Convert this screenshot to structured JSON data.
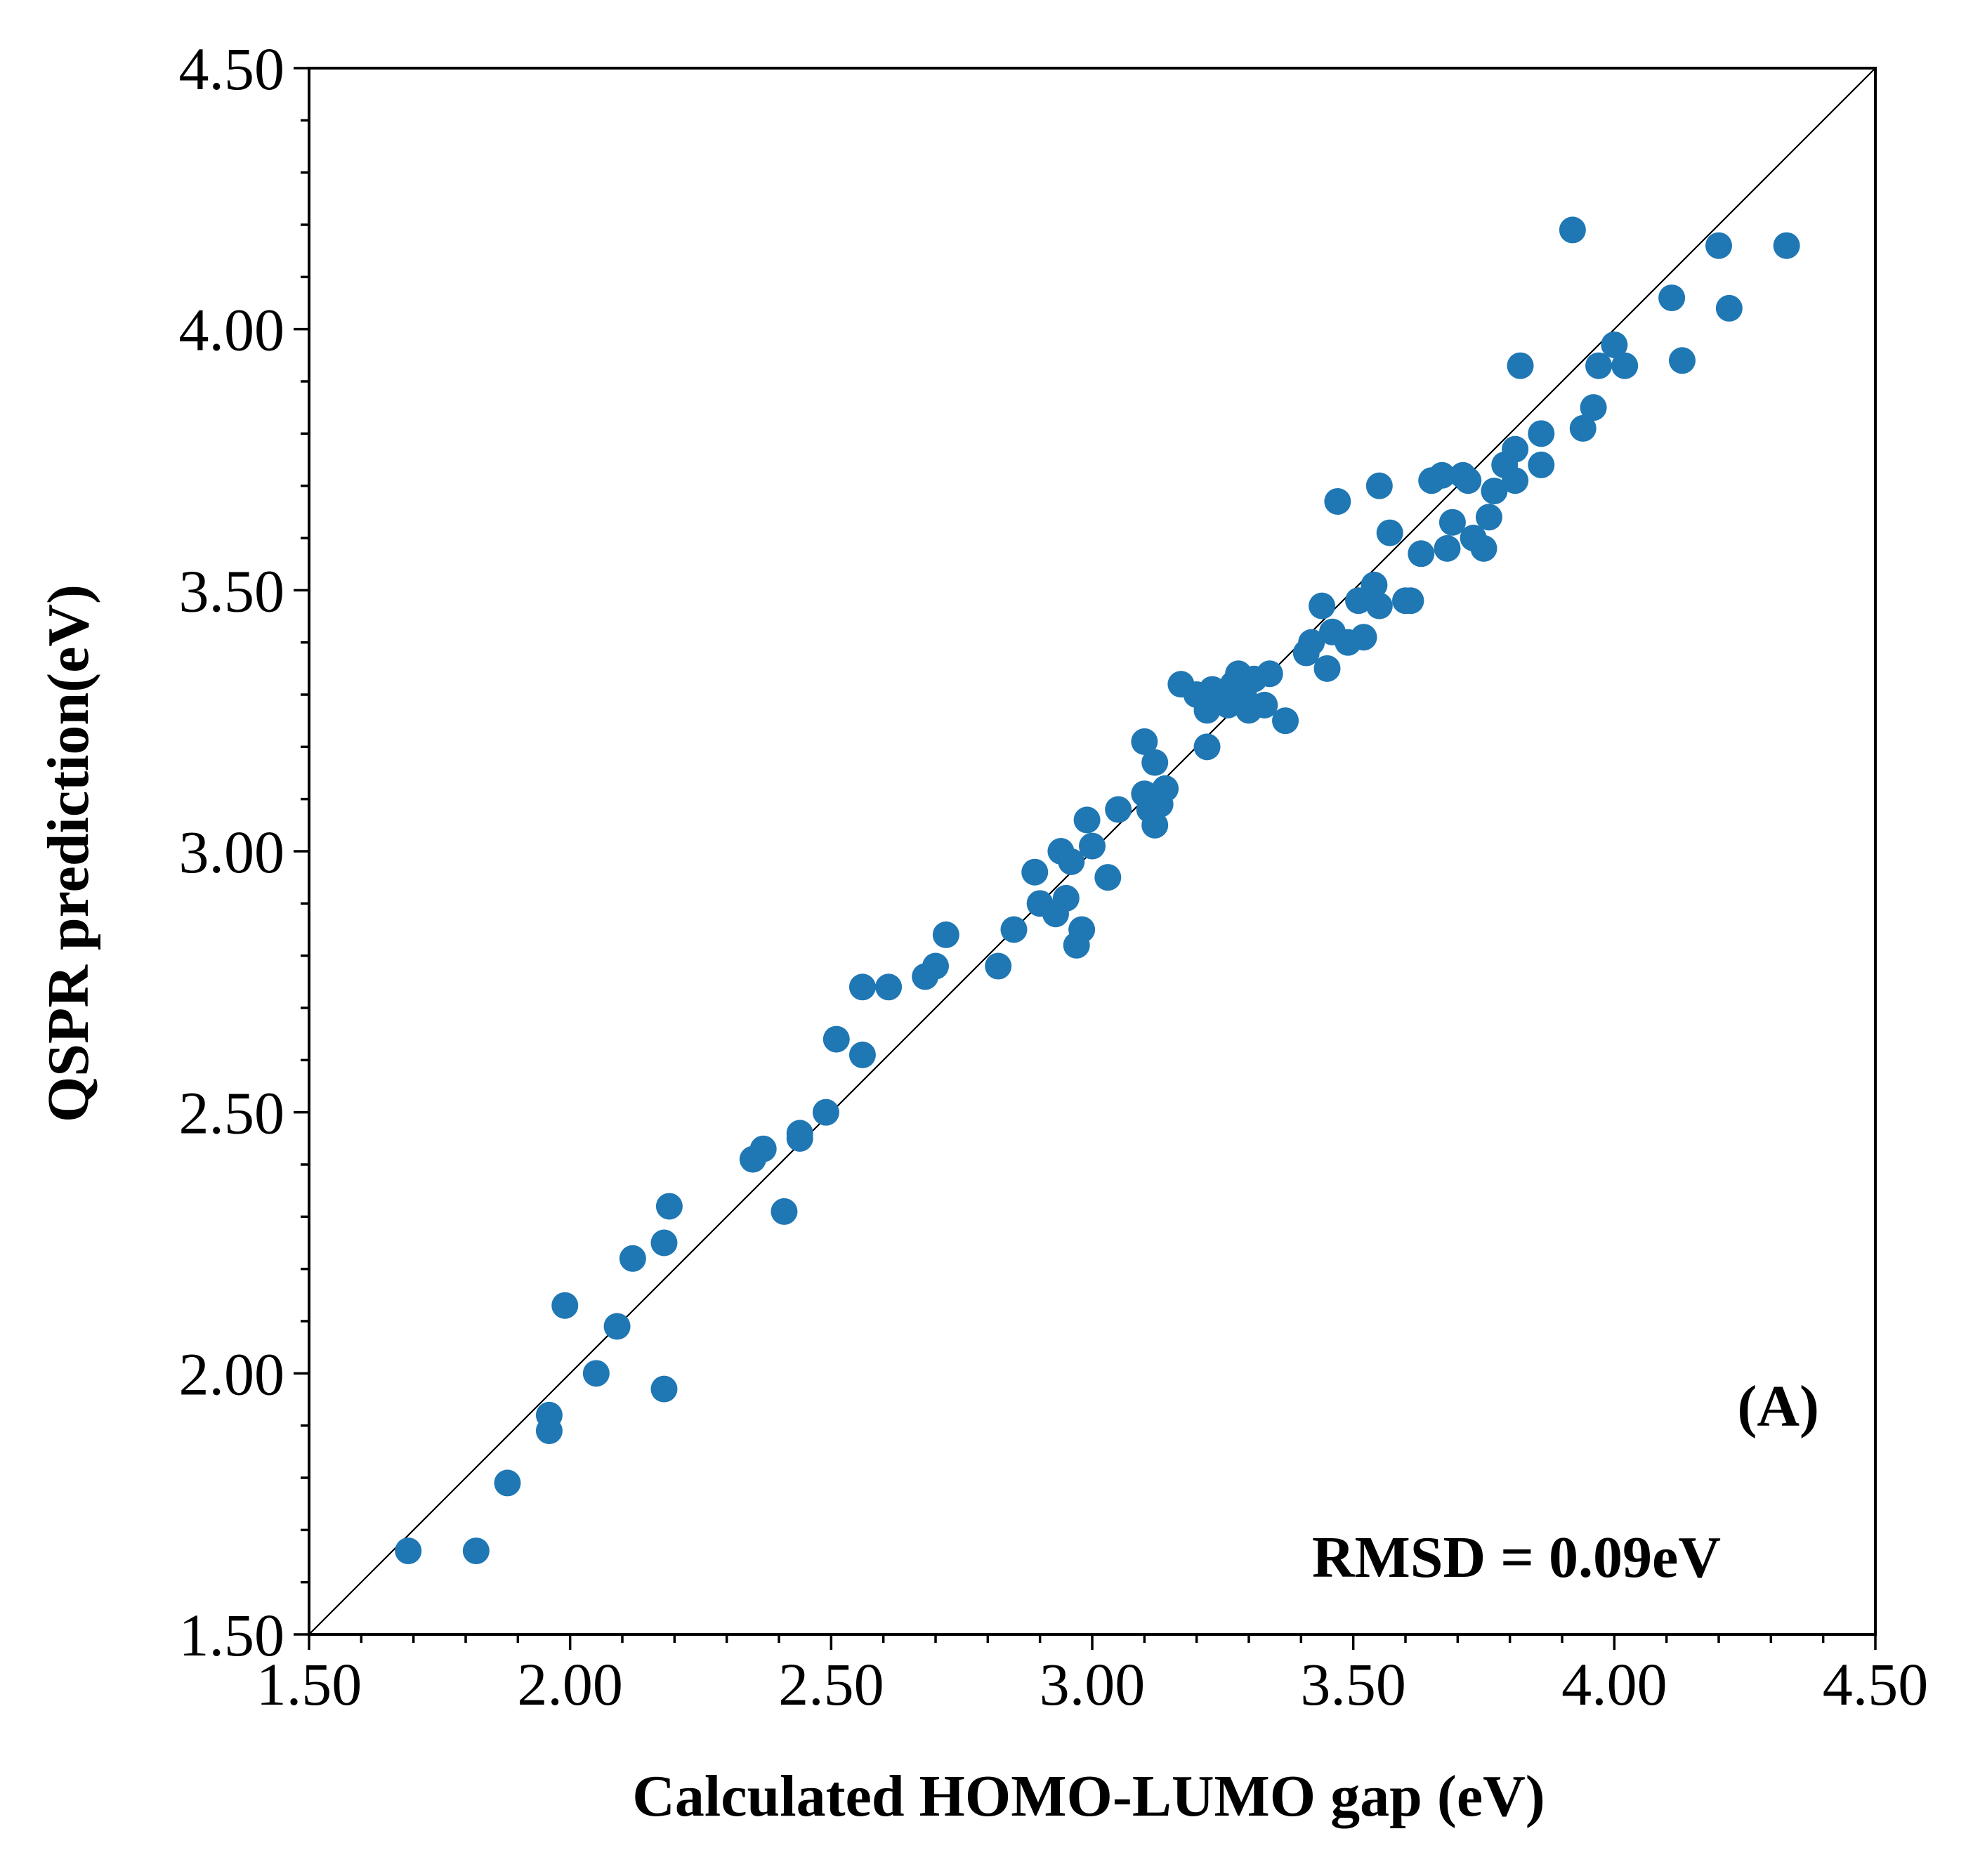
{
  "chart_data": {
    "type": "scatter",
    "xlabel": "Calculated HOMO-LUMO gap (eV)",
    "ylabel": "QSPR prediction(eV)",
    "xlim": [
      1.5,
      4.5
    ],
    "ylim": [
      1.5,
      4.5
    ],
    "xticks": [
      "1.50",
      "2.00",
      "2.50",
      "3.00",
      "3.50",
      "4.00",
      "4.50"
    ],
    "yticks": [
      "1.50",
      "2.00",
      "2.50",
      "3.00",
      "3.50",
      "4.00",
      "4.50"
    ],
    "grid": false,
    "reference_line": "y = x",
    "marker_color": "#1f77b4",
    "annotations": {
      "panel_label": "(A)",
      "rmsd": "RMSD = 0.09eV"
    },
    "points": [
      [
        1.69,
        1.66
      ],
      [
        1.82,
        1.66
      ],
      [
        1.88,
        1.79
      ],
      [
        1.96,
        1.89
      ],
      [
        1.96,
        1.92
      ],
      [
        1.99,
        2.13
      ],
      [
        2.05,
        2.0
      ],
      [
        2.09,
        2.09
      ],
      [
        2.12,
        2.22
      ],
      [
        2.18,
        1.97
      ],
      [
        2.18,
        2.25
      ],
      [
        2.19,
        2.32
      ],
      [
        2.35,
        2.41
      ],
      [
        2.37,
        2.43
      ],
      [
        2.41,
        2.31
      ],
      [
        2.44,
        2.45
      ],
      [
        2.44,
        2.46
      ],
      [
        2.49,
        2.5
      ],
      [
        2.51,
        2.64
      ],
      [
        2.56,
        2.61
      ],
      [
        2.56,
        2.74
      ],
      [
        2.61,
        2.74
      ],
      [
        2.68,
        2.76
      ],
      [
        2.7,
        2.78
      ],
      [
        2.72,
        2.84
      ],
      [
        2.82,
        2.78
      ],
      [
        2.85,
        2.85
      ],
      [
        2.89,
        2.96
      ],
      [
        2.9,
        2.9
      ],
      [
        2.93,
        2.88
      ],
      [
        2.94,
        3.0
      ],
      [
        2.95,
        2.91
      ],
      [
        2.96,
        2.98
      ],
      [
        2.97,
        2.82
      ],
      [
        2.98,
        2.85
      ],
      [
        2.99,
        3.06
      ],
      [
        3.0,
        3.01
      ],
      [
        3.03,
        2.95
      ],
      [
        3.05,
        3.08
      ],
      [
        3.1,
        3.21
      ],
      [
        3.1,
        3.11
      ],
      [
        3.11,
        3.08
      ],
      [
        3.12,
        3.05
      ],
      [
        3.12,
        3.17
      ],
      [
        3.13,
        3.09
      ],
      [
        3.14,
        3.12
      ],
      [
        3.17,
        3.32
      ],
      [
        3.2,
        3.3
      ],
      [
        3.22,
        3.27
      ],
      [
        3.22,
        3.2
      ],
      [
        3.23,
        3.31
      ],
      [
        3.25,
        3.3
      ],
      [
        3.26,
        3.28
      ],
      [
        3.27,
        3.32
      ],
      [
        3.28,
        3.34
      ],
      [
        3.29,
        3.3
      ],
      [
        3.3,
        3.27
      ],
      [
        3.31,
        3.33
      ],
      [
        3.33,
        3.28
      ],
      [
        3.34,
        3.34
      ],
      [
        3.37,
        3.25
      ],
      [
        3.41,
        3.38
      ],
      [
        3.42,
        3.4
      ],
      [
        3.44,
        3.47
      ],
      [
        3.45,
        3.35
      ],
      [
        3.46,
        3.42
      ],
      [
        3.47,
        3.67
      ],
      [
        3.49,
        3.4
      ],
      [
        3.51,
        3.48
      ],
      [
        3.52,
        3.41
      ],
      [
        3.54,
        3.51
      ],
      [
        3.55,
        3.47
      ],
      [
        3.55,
        3.7
      ],
      [
        3.57,
        3.61
      ],
      [
        3.6,
        3.48
      ],
      [
        3.61,
        3.48
      ],
      [
        3.63,
        3.57
      ],
      [
        3.65,
        3.71
      ],
      [
        3.67,
        3.72
      ],
      [
        3.68,
        3.58
      ],
      [
        3.69,
        3.63
      ],
      [
        3.71,
        3.72
      ],
      [
        3.72,
        3.71
      ],
      [
        3.73,
        3.6
      ],
      [
        3.75,
        3.58
      ],
      [
        3.76,
        3.64
      ],
      [
        3.77,
        3.69
      ],
      [
        3.79,
        3.74
      ],
      [
        3.81,
        3.77
      ],
      [
        3.81,
        3.71
      ],
      [
        3.82,
        3.93
      ],
      [
        3.86,
        3.74
      ],
      [
        3.86,
        3.8
      ],
      [
        3.92,
        4.19
      ],
      [
        3.94,
        3.81
      ],
      [
        3.96,
        3.85
      ],
      [
        3.97,
        3.93
      ],
      [
        4.0,
        3.97
      ],
      [
        4.02,
        3.93
      ],
      [
        4.11,
        4.06
      ],
      [
        4.13,
        3.94
      ],
      [
        4.2,
        4.16
      ],
      [
        4.22,
        4.04
      ],
      [
        4.33,
        4.16
      ]
    ]
  }
}
